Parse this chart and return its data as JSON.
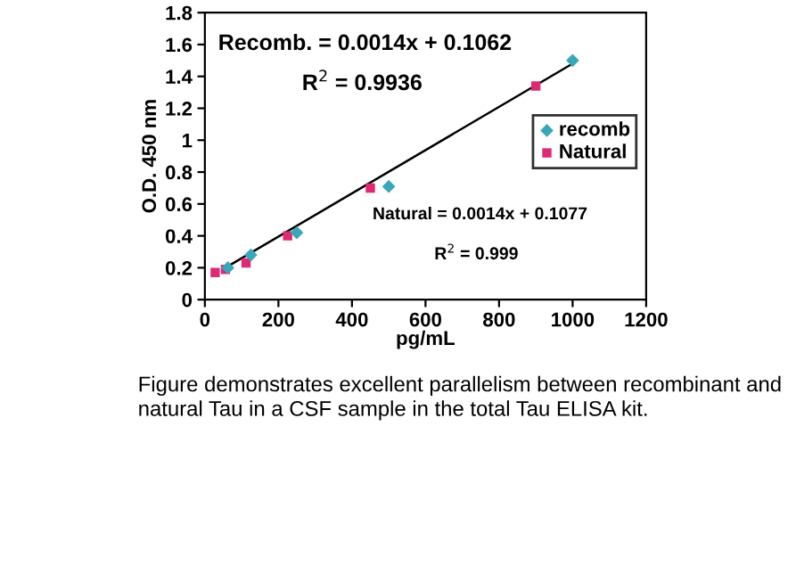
{
  "chart_data": {
    "type": "scatter",
    "xlabel": "pg/mL",
    "ylabel": "O.D. 450 nm",
    "series": [
      {
        "name": "recomb",
        "color": "#3aa6b9",
        "marker": "diamond",
        "x": [
          62.5,
          125,
          250,
          500,
          1000
        ],
        "values": [
          0.2,
          0.28,
          0.42,
          0.71,
          1.5
        ]
      },
      {
        "name": "Natural",
        "color": "#dd2a72",
        "marker": "square",
        "x": [
          28,
          56,
          112,
          225,
          450,
          900
        ],
        "values": [
          0.17,
          0.19,
          0.23,
          0.4,
          0.7,
          1.34
        ]
      },
      {
        "type": "line",
        "color": "#000000",
        "marker": "none",
        "x": [
          56,
          1000
        ],
        "values": [
          0.2,
          1.48
        ]
      }
    ],
    "xlim": [
      0,
      1200
    ],
    "xticks": [
      0,
      200,
      400,
      600,
      800,
      1000,
      1200
    ],
    "ylim": [
      0,
      1.8
    ],
    "yticks": [
      0,
      0.2,
      0.4,
      0.6,
      0.8,
      1,
      1.2,
      1.4,
      1.6,
      1.8
    ],
    "grid": false,
    "legend": "right",
    "annotations": [
      "Recomb. = 0.0014x + 0.1062",
      "R$^{2}$ = 0.9936",
      "Natural = 0.0014x + 0.1077",
      "R$^{2}$ = 0.999",
      "Figure demonstrates excellent parallelism between recombinant and natural Tau in a CSF sample in the total Tau ELISA kit."
    ]
  }
}
